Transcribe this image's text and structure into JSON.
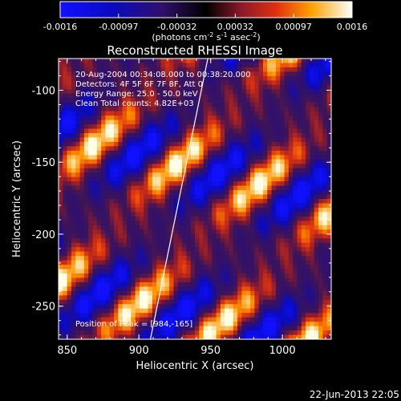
{
  "chart_data": {
    "type": "heatmap",
    "title": "Reconstructed RHESSI Image",
    "xlabel": "Heliocentric X (arcsec)",
    "ylabel": "Heliocentric Y (arcsec)",
    "xlim": [
      844,
      1034
    ],
    "ylim": [
      -273,
      -78
    ],
    "x_ticks": [
      850,
      900,
      950,
      1000
    ],
    "y_ticks": [
      -100,
      -150,
      -200,
      -250
    ],
    "colorbar": {
      "range": [
        -0.0016,
        0.0016
      ],
      "ticks": [
        "-0.0016",
        "-0.00097",
        "-0.00032",
        "0.00032",
        "0.00097",
        "0.0016"
      ],
      "units": "(photons cm",
      "units_sup1": "-2",
      "units_mid": " s",
      "units_sup2": "-1",
      "units_end": " asec",
      "units_sup3": "-2",
      "units_close": ")"
    },
    "info_lines": [
      "20-Aug-2004 00:34:08.000 to 00:38:20.000",
      "Detectors: 4F 5F 6F 7F 8F, Att 0",
      "Energy Range: 25.0 - 50.0 keV",
      "Clean     Total counts: 4.82E+03"
    ],
    "peak_label": "Position of Peak = [984,-165]",
    "peak": [
      984,
      -165
    ],
    "limb_line": [
      [
        908,
        -273
      ],
      [
        948,
        -78
      ]
    ],
    "footer": "22-Jun-2013 22:05"
  }
}
